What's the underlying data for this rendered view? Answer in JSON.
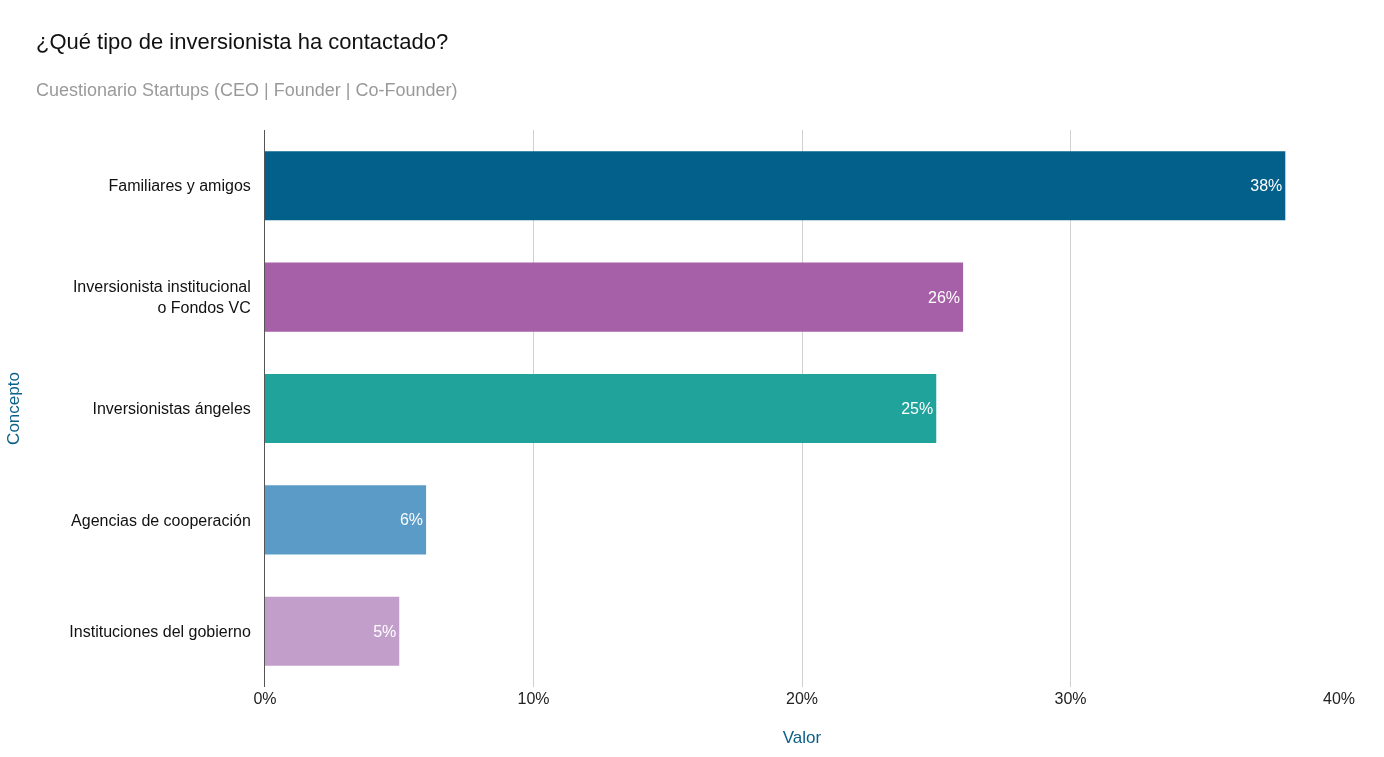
{
  "chart_data": {
    "type": "bar",
    "orientation": "horizontal",
    "title": "¿Qué tipo de inversionista ha contactado?",
    "subtitle": "Cuestionario Startups (CEO | Founder | Co-Founder)",
    "xlabel": "Valor",
    "ylabel": "Concepto",
    "categories": [
      "Familiares y amigos",
      "Inversionista institucional\no Fondos VC",
      "Inversionistas ángeles",
      "Agencias de cooperación",
      "Instituciones del gobierno"
    ],
    "values": [
      38,
      26,
      25,
      6,
      5
    ],
    "colors": [
      "#03608a",
      "#a560a8",
      "#1fa39b",
      "#5b9bc8",
      "#c29fcb"
    ],
    "value_labels": [
      "38%",
      "26%",
      "25%",
      "6%",
      "5%"
    ],
    "xlim": [
      0,
      40
    ],
    "xticks": [
      {
        "value": 0,
        "label": "0%"
      },
      {
        "value": 10,
        "label": "10%"
      },
      {
        "value": 20,
        "label": "20%"
      },
      {
        "value": 30,
        "label": "30%"
      },
      {
        "value": 40,
        "label": "40%"
      }
    ],
    "grid": "x",
    "legend": false
  }
}
